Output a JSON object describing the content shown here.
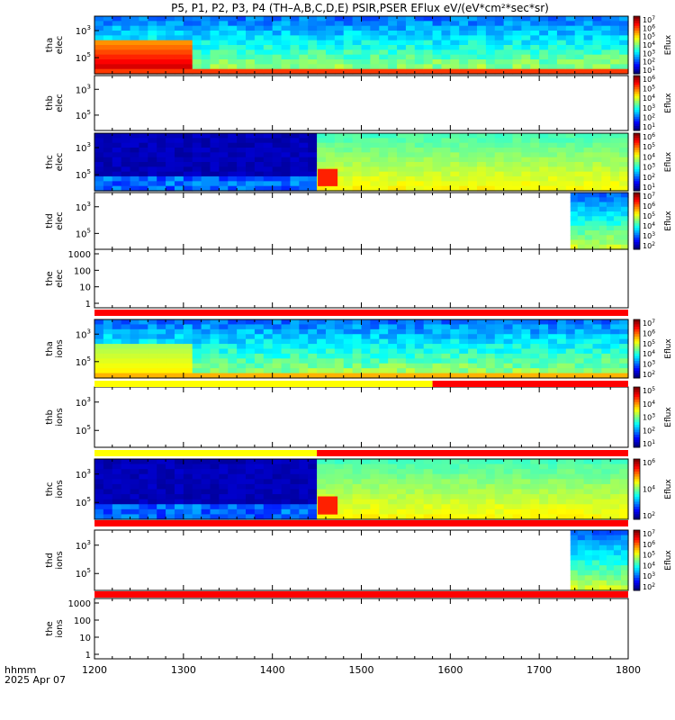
{
  "chart_data": {
    "type": "heatmap",
    "title": "P5, P1, P2, P3, P4 (TH–A,B,C,D,E) PSIR,PSER EFlux eV/(eV*cm²*sec*sr)",
    "time_axis": {
      "label_line1": "hhmm",
      "label_line2": "2025 Apr 07",
      "range": [
        1200,
        1800
      ],
      "ticks": [
        "1200",
        "1300",
        "1400",
        "1500",
        "1600",
        "1700",
        "1800"
      ]
    },
    "colorbar_label": "Eflux",
    "panels": [
      {
        "name": "tha_elec",
        "label1": "tha",
        "label2": "elec",
        "yticks": [
          {
            "t": "10",
            "e": "3"
          },
          {
            "t": "10",
            "e": "5"
          }
        ],
        "cbar": [
          "10^7",
          "10^6",
          "10^5",
          "10^4",
          "10^3",
          "10^2",
          "10^1"
        ],
        "data": "full",
        "profile": "strong"
      },
      {
        "name": "thb_elec",
        "label1": "thb",
        "label2": "elec",
        "yticks": [
          {
            "t": "10",
            "e": "3"
          },
          {
            "t": "10",
            "e": "5"
          }
        ],
        "cbar": [
          "10^6",
          "10^5",
          "10^4",
          "10^3",
          "10^2",
          "10^1"
        ],
        "data": "none"
      },
      {
        "name": "thc_elec",
        "label1": "thc",
        "label2": "elec",
        "yticks": [
          {
            "t": "10",
            "e": "3"
          },
          {
            "t": "10",
            "e": "5"
          }
        ],
        "cbar": [
          "10^6",
          "10^5",
          "10^4",
          "10^3",
          "10^2",
          "10^1"
        ],
        "data": "split",
        "split_at": 1450
      },
      {
        "name": "thd_elec",
        "label1": "thd",
        "label2": "elec",
        "yticks": [
          {
            "t": "10",
            "e": "3"
          },
          {
            "t": "10",
            "e": "5"
          }
        ],
        "cbar": [
          "10^7",
          "10^6",
          "10^5",
          "10^4",
          "10^3",
          "10^2"
        ],
        "data": "late",
        "start": 1735
      },
      {
        "name": "the_elec",
        "label1": "the",
        "label2": "elec",
        "yticks": [
          {
            "t": "1000"
          },
          {
            "t": "100"
          },
          {
            "t": "10"
          },
          {
            "t": "1"
          }
        ],
        "cbar": [],
        "data": "none"
      },
      {
        "name": "tha_ions",
        "label1": "tha",
        "label2": "ions",
        "yticks": [
          {
            "t": "10",
            "e": "3"
          },
          {
            "t": "10",
            "e": "5"
          }
        ],
        "cbar": [
          "10^7",
          "10^6",
          "10^5",
          "10^4",
          "10^3",
          "10^2"
        ],
        "data": "full",
        "profile": "ions"
      },
      {
        "name": "thb_ions",
        "label1": "thb",
        "label2": "ions",
        "yticks": [
          {
            "t": "10",
            "e": "3"
          },
          {
            "t": "10",
            "e": "5"
          }
        ],
        "cbar": [
          "10^5",
          "10^4",
          "10^3",
          "10^2",
          "10^1"
        ],
        "data": "none"
      },
      {
        "name": "thc_ions",
        "label1": "thc",
        "label2": "ions",
        "yticks": [
          {
            "t": "10",
            "e": "3"
          },
          {
            "t": "10",
            "e": "5"
          }
        ],
        "cbar": [
          "10^6",
          "10^4",
          "10^2"
        ],
        "data": "split",
        "split_at": 1450
      },
      {
        "name": "thd_ions",
        "label1": "thd",
        "label2": "ions",
        "yticks": [
          {
            "t": "10",
            "e": "3"
          },
          {
            "t": "10",
            "e": "5"
          }
        ],
        "cbar": [
          "10^7",
          "10^6",
          "10^5",
          "10^4",
          "10^3",
          "10^2"
        ],
        "data": "late",
        "start": 1735
      },
      {
        "name": "the_ions",
        "label1": "the",
        "label2": "ions",
        "yticks": [
          {
            "t": "1000"
          },
          {
            "t": "100"
          },
          {
            "t": "10"
          },
          {
            "t": "1"
          }
        ],
        "cbar": [],
        "data": "none"
      }
    ],
    "mode_bars": [
      {
        "after_panel": "the_elec",
        "segments": [
          {
            "from": 1200,
            "to": 1800,
            "color": "#ff0000"
          }
        ]
      },
      {
        "after_panel": "tha_ions",
        "segments": [
          {
            "from": 1200,
            "to": 1580,
            "color": "#ffff00"
          },
          {
            "from": 1580,
            "to": 1800,
            "color": "#ff0000"
          }
        ]
      },
      {
        "after_panel": "thb_ions",
        "segments": [
          {
            "from": 1200,
            "to": 1450,
            "color": "#ffff00"
          },
          {
            "from": 1450,
            "to": 1800,
            "color": "#ff0000"
          }
        ]
      },
      {
        "after_panel": "thc_ions",
        "segments": [
          {
            "from": 1200,
            "to": 1800,
            "color": "#ff0000"
          }
        ]
      },
      {
        "after_panel": "thd_ions",
        "segments": [
          {
            "from": 1200,
            "to": 1800,
            "color": "#ff0000"
          }
        ]
      }
    ]
  }
}
